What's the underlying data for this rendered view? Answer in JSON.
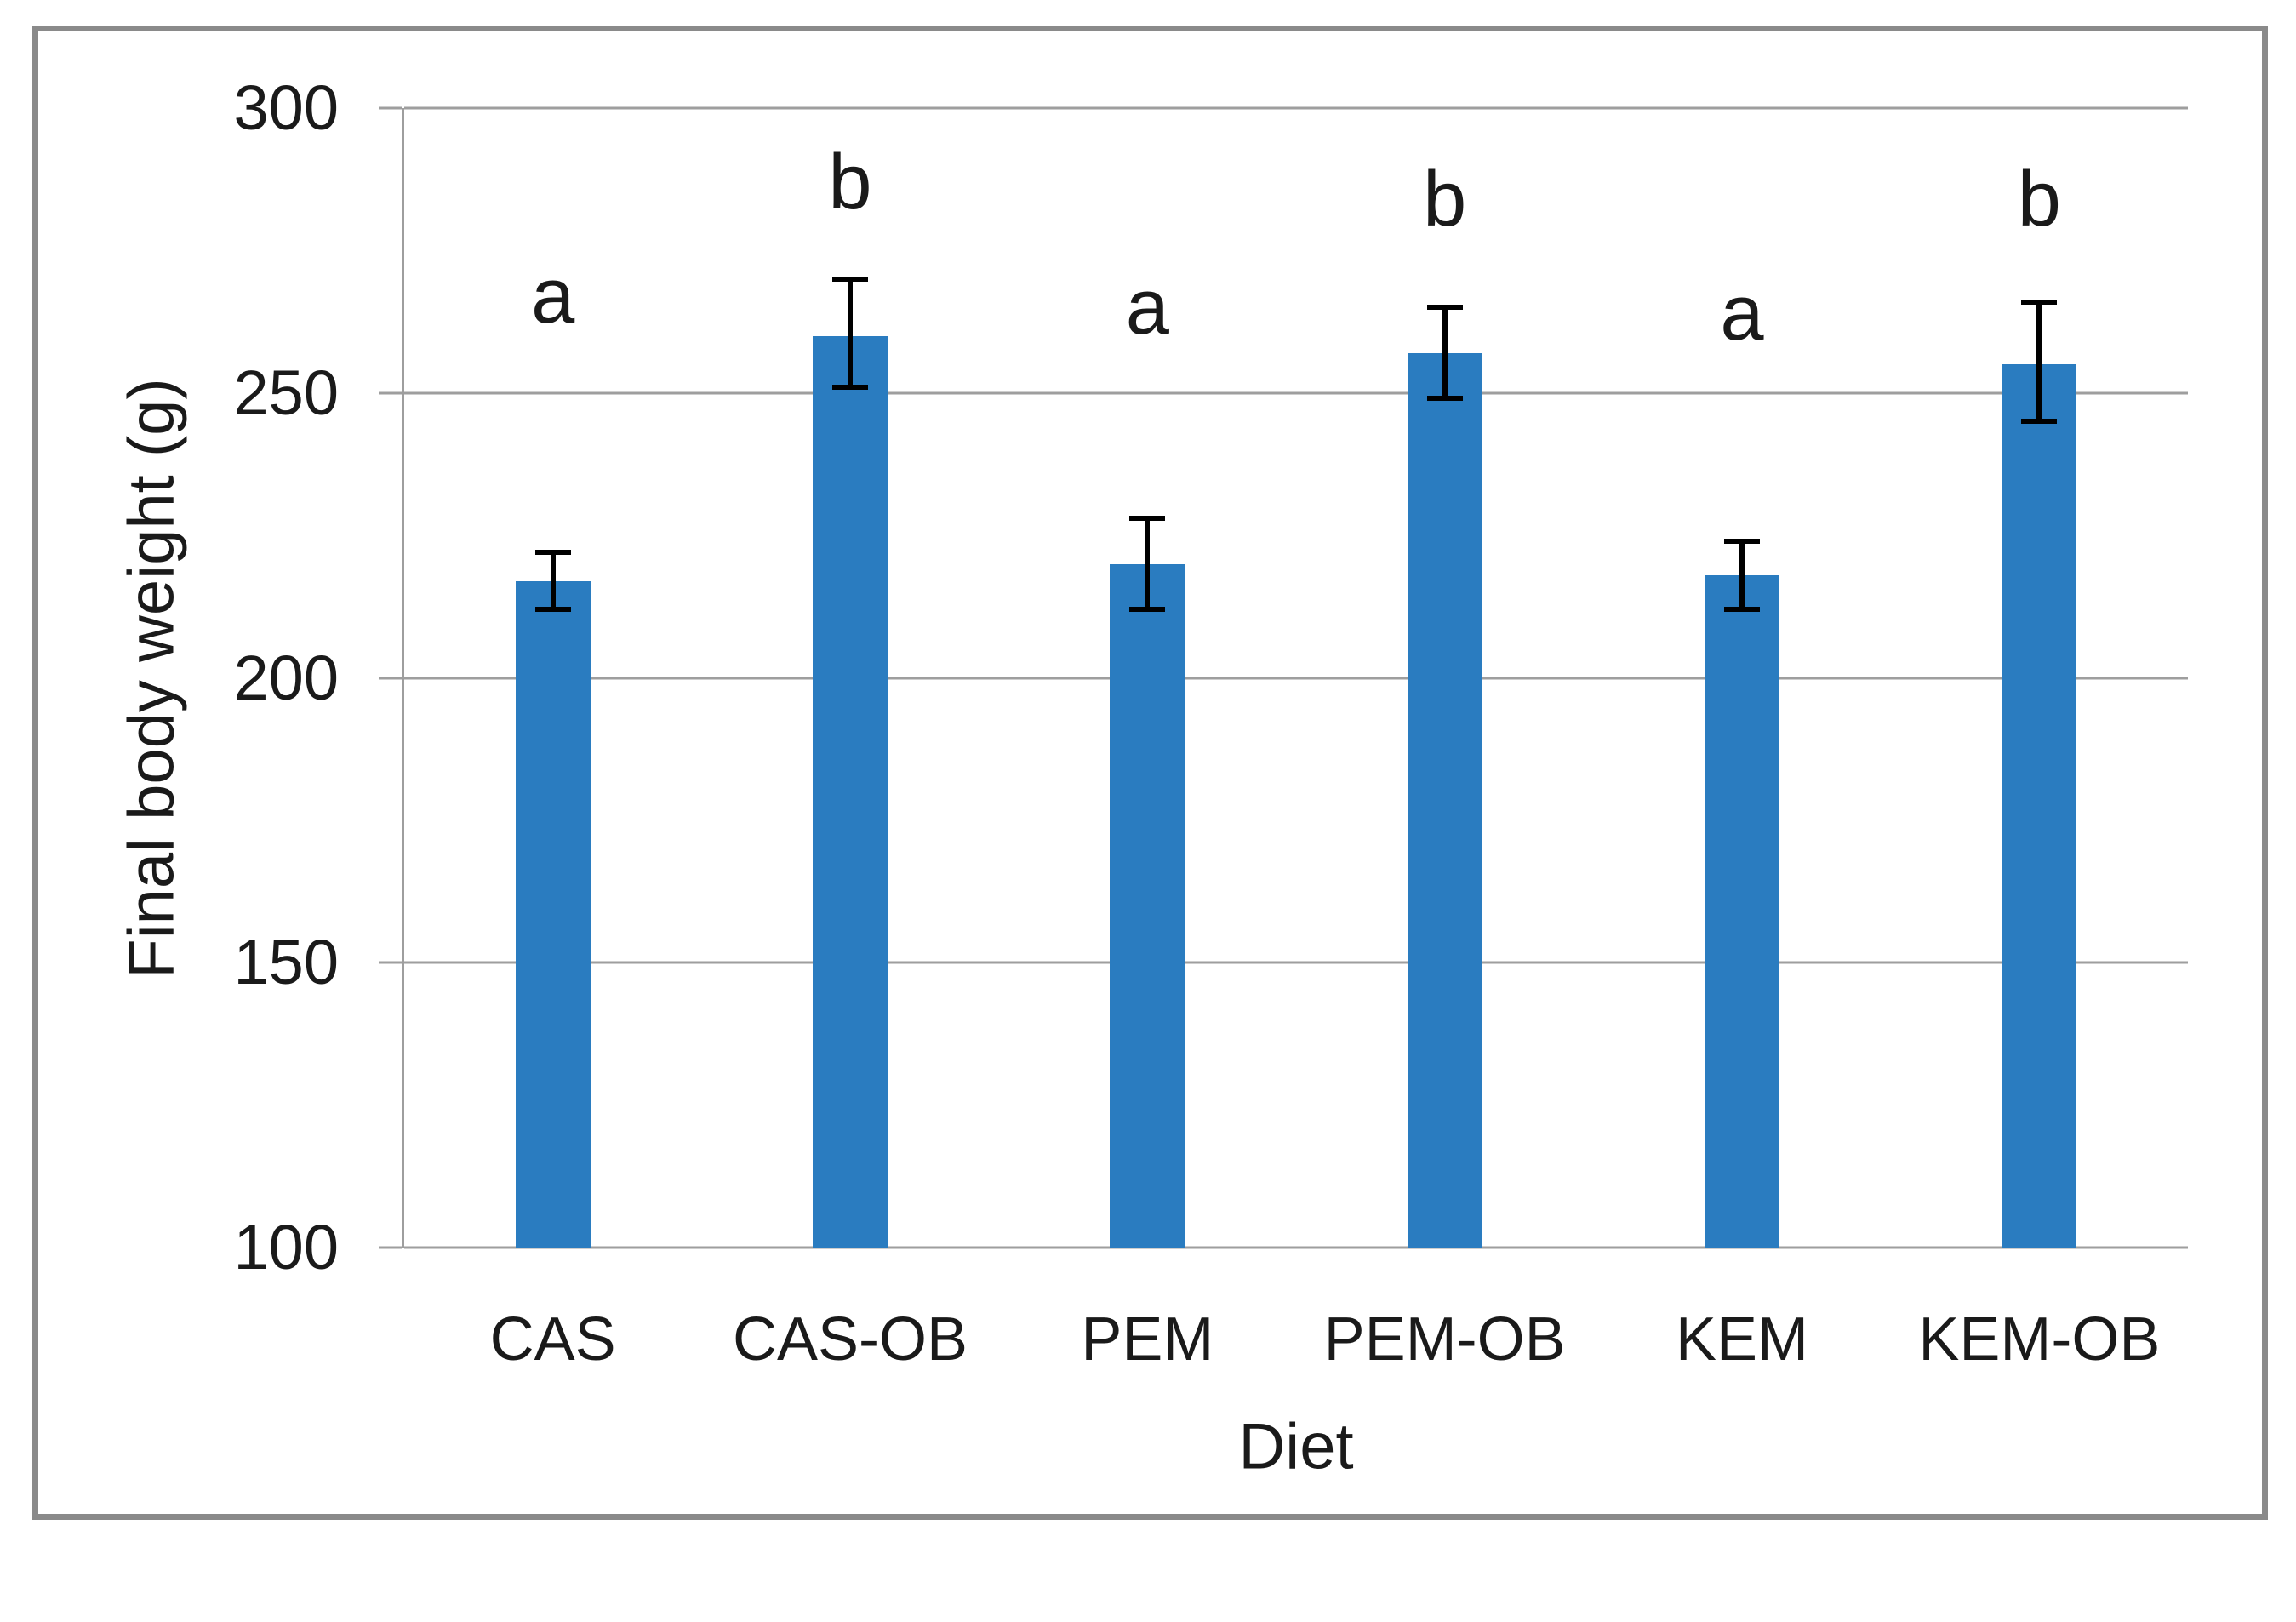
{
  "colors": {
    "bar": "#2a7cc0",
    "gridline": "#9e9e9e",
    "axis_line": "#9e9e9e",
    "frame": "#8a8a8a",
    "error_bar": "#000000",
    "text": "#1a1a1a"
  },
  "chart_data": {
    "type": "bar",
    "title": "",
    "xlabel": "Diet",
    "ylabel": "Final body weight (g)",
    "ylim": [
      100,
      300
    ],
    "yticks": [
      300,
      250,
      200,
      150,
      100
    ],
    "grid": true,
    "legend": "none",
    "categories": [
      "CAS",
      "CAS-OB",
      "PEM",
      "PEM-OB",
      "KEM",
      "KEM-OB"
    ],
    "values": [
      217,
      260,
      220,
      257,
      218,
      255
    ],
    "error_up": [
      5,
      10,
      8,
      8,
      6,
      11
    ],
    "error_down": [
      5,
      9,
      8,
      8,
      6,
      10
    ],
    "sig_letters": [
      "a",
      "b",
      "a",
      "b",
      "a",
      "b"
    ],
    "sig_letter_y": [
      267,
      287,
      265,
      284,
      264,
      284
    ]
  }
}
